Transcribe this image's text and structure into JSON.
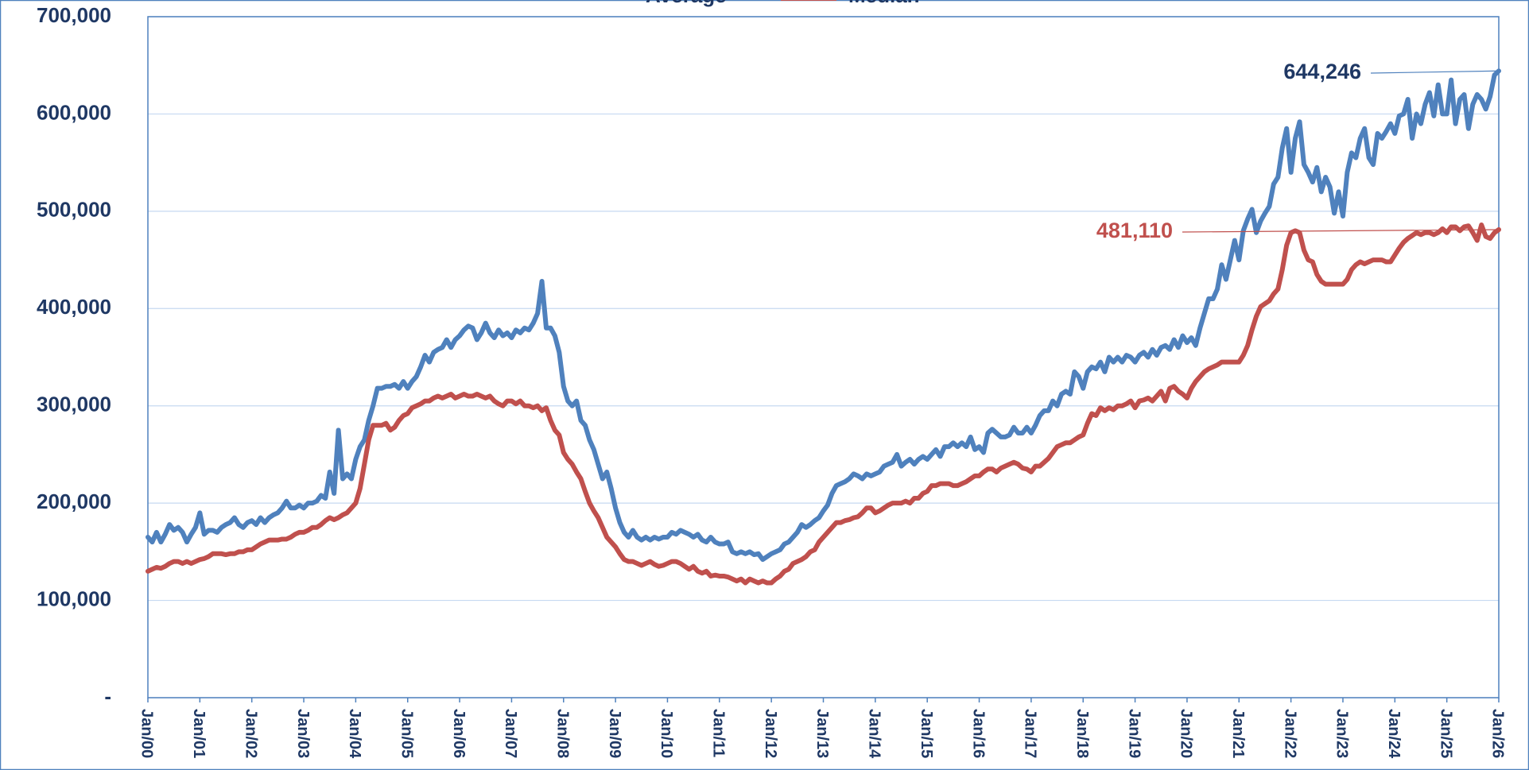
{
  "chart_data": {
    "type": "line",
    "categories": [
      "Jan/00",
      null,
      null,
      null,
      null,
      null,
      null,
      null,
      null,
      null,
      null,
      null,
      "Jan/01",
      null,
      null,
      null,
      null,
      null,
      null,
      null,
      null,
      null,
      null,
      null,
      "Jan/02",
      null,
      null,
      null,
      null,
      null,
      null,
      null,
      null,
      null,
      null,
      null,
      "Jan/03",
      null,
      null,
      null,
      null,
      null,
      null,
      null,
      null,
      null,
      null,
      null,
      "Jan/04",
      null,
      null,
      null,
      null,
      null,
      null,
      null,
      null,
      null,
      null,
      null,
      "Jan/05",
      null,
      null,
      null,
      null,
      null,
      null,
      null,
      null,
      null,
      null,
      null,
      "Jan/06",
      null,
      null,
      null,
      null,
      null,
      null,
      null,
      null,
      null,
      null,
      null,
      "Jan/07",
      null,
      null,
      null,
      null,
      null,
      null,
      null,
      null,
      null,
      null,
      null,
      "Jan/08",
      null,
      null,
      null,
      null,
      null,
      null,
      null,
      null,
      null,
      null,
      null,
      "Jan/09",
      null,
      null,
      null,
      null,
      null,
      null,
      null,
      null,
      null,
      null,
      null,
      "Jan/10",
      null,
      null,
      null,
      null,
      null,
      null,
      null,
      null,
      null,
      null,
      null,
      "Jan/11",
      null,
      null,
      null,
      null,
      null,
      null,
      null,
      null,
      null,
      null,
      null,
      "Jan/12",
      null,
      null,
      null,
      null,
      null,
      null,
      null,
      null,
      null,
      null,
      null,
      "Jan/13",
      null,
      null,
      null,
      null,
      null,
      null,
      null,
      null,
      null,
      null,
      null,
      "Jan/14",
      null,
      null,
      null,
      null,
      null,
      null,
      null,
      null,
      null,
      null,
      null,
      "Jan/15",
      null,
      null,
      null,
      null,
      null,
      null,
      null,
      null,
      null,
      null,
      null,
      "Jan/16",
      null,
      null,
      null,
      null,
      null,
      null,
      null,
      null,
      null,
      null,
      null,
      "Jan/17",
      null,
      null,
      null,
      null,
      null,
      null,
      null,
      null,
      null,
      null,
      null,
      "Jan/18",
      null,
      null,
      null,
      null,
      null,
      null,
      null,
      null,
      null,
      null,
      null,
      "Jan/19",
      null,
      null,
      null,
      null,
      null,
      null,
      null,
      null,
      null,
      null,
      null,
      "Jan/20",
      null,
      null,
      null,
      null,
      null,
      null,
      null,
      null,
      null,
      null,
      null,
      "Jan/21",
      null,
      null,
      null,
      null,
      null,
      null,
      null,
      null,
      null,
      null,
      null,
      "Jan/22",
      null,
      null,
      null,
      null,
      null,
      null,
      null,
      null,
      null,
      null,
      null,
      "Jan/23",
      null,
      null,
      null,
      null,
      null,
      null,
      null,
      null,
      null,
      null,
      null,
      "Jan/24",
      null,
      null,
      null,
      null,
      null,
      null,
      null,
      null,
      null,
      null,
      null,
      "Jan/25",
      null,
      null,
      null,
      null,
      null,
      null,
      null,
      null,
      null,
      null,
      null,
      "Jan/26"
    ],
    "series": [
      {
        "name": "Average",
        "color": "#4f81bd",
        "values": [
          165000,
          160000,
          170000,
          160000,
          168000,
          178000,
          172000,
          175000,
          170000,
          160000,
          168000,
          175000,
          190000,
          168000,
          172000,
          172000,
          170000,
          175000,
          178000,
          180000,
          185000,
          178000,
          175000,
          180000,
          182000,
          178000,
          185000,
          180000,
          185000,
          188000,
          190000,
          195000,
          202000,
          195000,
          195000,
          198000,
          195000,
          200000,
          200000,
          202000,
          208000,
          205000,
          232000,
          210000,
          275000,
          225000,
          230000,
          225000,
          245000,
          258000,
          265000,
          285000,
          300000,
          318000,
          318000,
          320000,
          320000,
          322000,
          318000,
          325000,
          318000,
          325000,
          330000,
          340000,
          352000,
          345000,
          355000,
          358000,
          360000,
          368000,
          360000,
          368000,
          372000,
          378000,
          382000,
          380000,
          368000,
          375000,
          385000,
          375000,
          370000,
          378000,
          372000,
          375000,
          370000,
          378000,
          375000,
          380000,
          378000,
          385000,
          395000,
          428000,
          380000,
          380000,
          372000,
          355000,
          320000,
          305000,
          300000,
          305000,
          285000,
          280000,
          265000,
          255000,
          240000,
          225000,
          232000,
          215000,
          195000,
          180000,
          170000,
          165000,
          172000,
          165000,
          162000,
          165000,
          162000,
          165000,
          163000,
          165000,
          165000,
          170000,
          168000,
          172000,
          170000,
          168000,
          165000,
          168000,
          162000,
          160000,
          165000,
          160000,
          158000,
          158000,
          160000,
          150000,
          148000,
          150000,
          148000,
          150000,
          147000,
          148000,
          142000,
          145000,
          148000,
          150000,
          152000,
          158000,
          160000,
          165000,
          170000,
          178000,
          175000,
          178000,
          182000,
          185000,
          192000,
          198000,
          210000,
          218000,
          220000,
          222000,
          225000,
          230000,
          228000,
          225000,
          230000,
          228000,
          230000,
          232000,
          238000,
          240000,
          242000,
          250000,
          238000,
          242000,
          245000,
          240000,
          245000,
          248000,
          245000,
          250000,
          255000,
          248000,
          258000,
          258000,
          262000,
          258000,
          262000,
          258000,
          268000,
          255000,
          258000,
          252000,
          272000,
          276000,
          272000,
          268000,
          268000,
          270000,
          278000,
          272000,
          272000,
          278000,
          272000,
          280000,
          290000,
          295000,
          295000,
          305000,
          300000,
          312000,
          315000,
          312000,
          335000,
          330000,
          318000,
          335000,
          340000,
          338000,
          345000,
          335000,
          350000,
          345000,
          350000,
          345000,
          352000,
          350000,
          345000,
          352000,
          355000,
          350000,
          358000,
          352000,
          360000,
          362000,
          358000,
          368000,
          360000,
          372000,
          365000,
          370000,
          362000,
          380000,
          395000,
          410000,
          410000,
          420000,
          445000,
          430000,
          450000,
          470000,
          450000,
          480000,
          492000,
          502000,
          478000,
          490000,
          498000,
          505000,
          528000,
          535000,
          565000,
          585000,
          540000,
          575000,
          592000,
          548000,
          540000,
          530000,
          545000,
          520000,
          535000,
          525000,
          498000,
          520000,
          495000,
          540000,
          560000,
          555000,
          575000,
          585000,
          555000,
          548000,
          580000,
          575000,
          582000,
          590000,
          580000,
          598000,
          600000,
          615000,
          575000,
          600000,
          590000,
          610000,
          622000,
          598000,
          630000,
          600000,
          600000,
          635000,
          590000,
          615000,
          620000,
          585000,
          610000,
          620000,
          615000,
          605000,
          618000,
          640000,
          644246
        ]
      },
      {
        "name": "Median",
        "color": "#c0504d",
        "values": [
          130000,
          132000,
          134000,
          133000,
          135000,
          138000,
          140000,
          140000,
          138000,
          140000,
          138000,
          140000,
          142000,
          143000,
          145000,
          148000,
          148000,
          148000,
          147000,
          148000,
          148000,
          150000,
          150000,
          152000,
          152000,
          155000,
          158000,
          160000,
          162000,
          162000,
          162000,
          163000,
          163000,
          165000,
          168000,
          170000,
          170000,
          172000,
          175000,
          175000,
          178000,
          182000,
          185000,
          183000,
          185000,
          188000,
          190000,
          195000,
          200000,
          215000,
          240000,
          265000,
          280000,
          280000,
          280000,
          282000,
          275000,
          278000,
          285000,
          290000,
          292000,
          298000,
          300000,
          302000,
          305000,
          305000,
          308000,
          310000,
          308000,
          310000,
          312000,
          308000,
          310000,
          312000,
          310000,
          310000,
          312000,
          310000,
          308000,
          310000,
          305000,
          302000,
          300000,
          305000,
          305000,
          302000,
          305000,
          300000,
          300000,
          298000,
          300000,
          295000,
          298000,
          285000,
          275000,
          270000,
          252000,
          245000,
          240000,
          232000,
          225000,
          212000,
          200000,
          192000,
          185000,
          175000,
          165000,
          160000,
          155000,
          148000,
          142000,
          140000,
          140000,
          138000,
          136000,
          138000,
          140000,
          137000,
          135000,
          136000,
          138000,
          140000,
          140000,
          138000,
          135000,
          132000,
          135000,
          130000,
          128000,
          130000,
          125000,
          126000,
          125000,
          125000,
          124000,
          122000,
          120000,
          122000,
          118000,
          122000,
          120000,
          118000,
          120000,
          118000,
          118000,
          122000,
          125000,
          130000,
          132000,
          138000,
          140000,
          142000,
          145000,
          150000,
          152000,
          160000,
          165000,
          170000,
          175000,
          180000,
          180000,
          182000,
          183000,
          185000,
          186000,
          190000,
          195000,
          195000,
          190000,
          192000,
          195000,
          198000,
          200000,
          200000,
          200000,
          202000,
          200000,
          205000,
          205000,
          210000,
          212000,
          218000,
          218000,
          220000,
          220000,
          220000,
          218000,
          218000,
          220000,
          222000,
          225000,
          228000,
          228000,
          232000,
          235000,
          235000,
          232000,
          236000,
          238000,
          240000,
          242000,
          240000,
          236000,
          235000,
          232000,
          238000,
          238000,
          242000,
          246000,
          252000,
          258000,
          260000,
          262000,
          262000,
          265000,
          268000,
          270000,
          282000,
          292000,
          290000,
          298000,
          295000,
          298000,
          296000,
          300000,
          300000,
          302000,
          305000,
          298000,
          305000,
          306000,
          308000,
          305000,
          310000,
          315000,
          305000,
          318000,
          320000,
          315000,
          312000,
          308000,
          318000,
          325000,
          330000,
          335000,
          338000,
          340000,
          342000,
          345000,
          345000,
          345000,
          345000,
          345000,
          352000,
          362000,
          378000,
          392000,
          402000,
          405000,
          408000,
          415000,
          420000,
          440000,
          465000,
          478000,
          480000,
          478000,
          460000,
          450000,
          448000,
          435000,
          428000,
          425000,
          425000,
          425000,
          425000,
          425000,
          430000,
          440000,
          445000,
          448000,
          446000,
          448000,
          450000,
          450000,
          450000,
          448000,
          448000,
          455000,
          462000,
          468000,
          472000,
          475000,
          478000,
          476000,
          478000,
          478000,
          476000,
          478000,
          482000,
          478000,
          484000,
          484000,
          480000,
          484000,
          485000,
          478000,
          470000,
          486000,
          474000,
          472000,
          478000,
          481110
        ]
      }
    ],
    "annotations": [
      "644,246",
      "481,110"
    ],
    "ylim": [
      0,
      700000
    ],
    "yticks": [
      {
        "value": 0,
        "label": "-"
      },
      {
        "value": 100000,
        "label": "100,000"
      },
      {
        "value": 200000,
        "label": "200,000"
      },
      {
        "value": 300000,
        "label": "300,000"
      },
      {
        "value": 400000,
        "label": "400,000"
      },
      {
        "value": 500000,
        "label": "500,000"
      },
      {
        "value": 600000,
        "label": "600,000"
      },
      {
        "value": 700000,
        "label": "700,000"
      }
    ],
    "grid": true,
    "legend": "top"
  }
}
